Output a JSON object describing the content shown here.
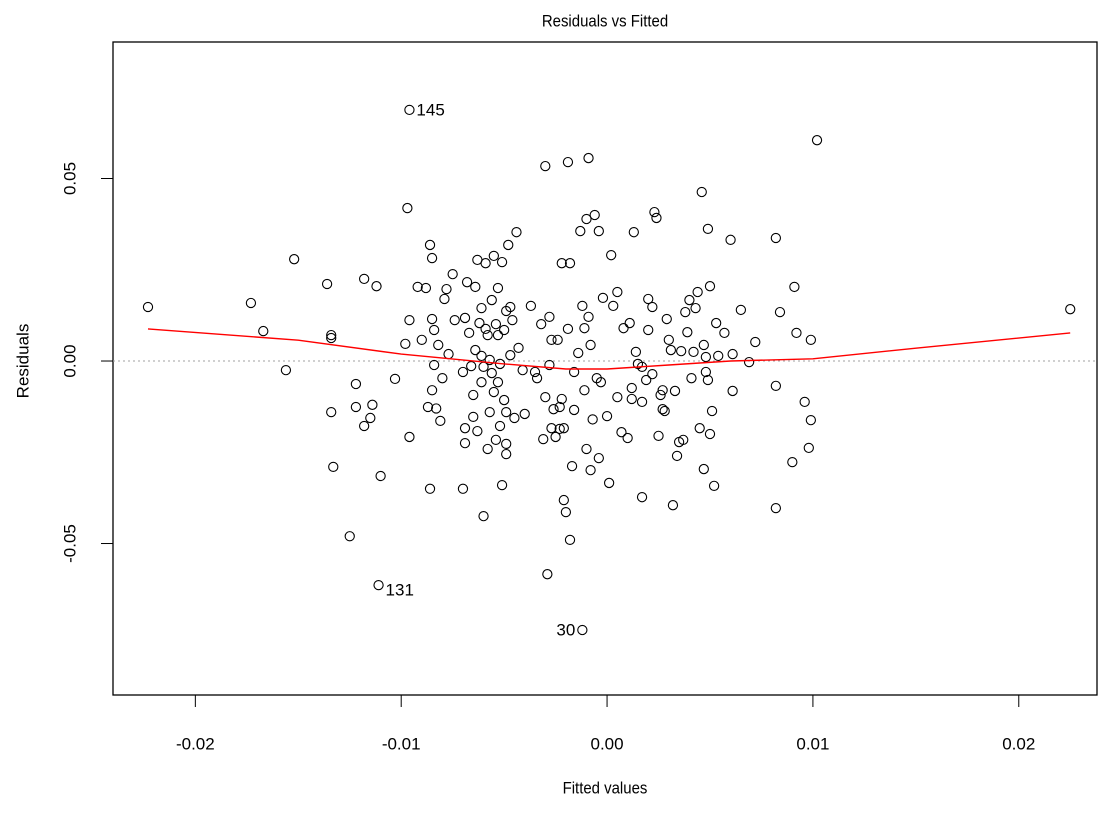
{
  "chart_data": {
    "type": "scatter",
    "title": "Residuals vs Fitted",
    "x_label": "Fitted values",
    "y_label": "Residuals",
    "xlim": [
      -0.024,
      0.0238
    ],
    "ylim": [
      -0.0915,
      0.0874
    ],
    "xticks": [
      -0.02,
      -0.01,
      {
        "value": 0,
        "label": "0.00"
      },
      0.01,
      0.02
    ],
    "yticks": [
      -0.05,
      {
        "value": 0,
        "label": "0.00"
      },
      0.05
    ],
    "color": "#000000",
    "reference_line": {
      "value": 0,
      "color": "#a0a0a0"
    },
    "smooth": {
      "color": "#ff0000",
      "x": [
        -0.0223,
        -0.015,
        -0.01,
        -0.005,
        -0.002,
        0,
        0.003,
        0.006,
        0.01,
        0.015,
        0.0225
      ],
      "values": [
        0.0088,
        0.0057,
        0.0019,
        -0.0008,
        -0.0022,
        -0.0022,
        -0.0011,
        0,
        0.0006,
        0.0035,
        0.0077
      ]
    },
    "annotations": [
      {
        "text": "145",
        "x": -0.0096,
        "y": 0.0688,
        "side": "right"
      },
      {
        "text": "131",
        "x": -0.0111,
        "y": -0.0614,
        "side": "right"
      },
      {
        "text": "30",
        "x": -0.0012,
        "y": -0.0737,
        "side": "left"
      }
    ],
    "x": [
      -0.0223,
      -0.0173,
      -0.0167,
      -0.0156,
      -0.0152,
      -0.0136,
      -0.0134,
      -0.0134,
      -0.0134,
      -0.0133,
      -0.0125,
      -0.0122,
      -0.0122,
      -0.0118,
      -0.0118,
      -0.0115,
      -0.0114,
      -0.0112,
      -0.0111,
      -0.011,
      -0.0103,
      -0.0097,
      -0.0096,
      -0.0096,
      -0.0096,
      -0.0098,
      -0.0092,
      -0.009,
      -0.0088,
      -0.0087,
      -0.0086,
      -0.0086,
      -0.0085,
      -0.0085,
      -0.0085,
      -0.0084,
      -0.0084,
      -0.0083,
      -0.0082,
      -0.0081,
      -0.008,
      -0.0078,
      -0.0079,
      -0.0077,
      -0.0075,
      -0.0074,
      -0.007,
      -0.007,
      -0.0069,
      -0.0069,
      -0.0069,
      -0.0068,
      -0.0067,
      -0.0066,
      -0.0065,
      -0.0065,
      -0.0064,
      -0.0064,
      -0.0063,
      -0.0063,
      -0.0062,
      -0.0061,
      -0.0061,
      -0.0061,
      -0.006,
      -0.006,
      -0.0059,
      -0.0059,
      -0.0058,
      -0.0058,
      -0.0057,
      -0.0057,
      -0.0056,
      -0.0056,
      -0.0055,
      -0.0055,
      -0.0054,
      -0.0054,
      -0.0053,
      -0.0053,
      -0.0053,
      -0.0052,
      -0.0052,
      -0.0051,
      -0.0051,
      -0.005,
      -0.005,
      -0.0049,
      -0.0049,
      -0.0049,
      -0.0049,
      -0.0048,
      -0.0047,
      -0.0047,
      -0.0046,
      -0.0045,
      -0.0044,
      -0.0043,
      -0.0041,
      -0.004,
      -0.0037,
      -0.0035,
      -0.0034,
      -0.0032,
      -0.0031,
      -0.003,
      -0.003,
      -0.0029,
      -0.0028,
      -0.0028,
      -0.0027,
      -0.0027,
      -0.0026,
      -0.0025,
      -0.0024,
      -0.0023,
      -0.0023,
      -0.0022,
      -0.0022,
      -0.0021,
      -0.0021,
      -0.002,
      -0.0019,
      -0.0019,
      -0.0018,
      -0.0018,
      -0.0017,
      -0.0016,
      -0.0016,
      -0.0014,
      -0.0013,
      -0.0012,
      -0.0012,
      -0.0011,
      -0.0011,
      -0.001,
      -0.001,
      -0.0009,
      -0.0009,
      -0.0008,
      -0.0008,
      -0.0007,
      -0.0006,
      -0.0005,
      -0.0004,
      -0.0004,
      -0.0003,
      -0.0002,
      0,
      0.0001,
      0.0002,
      0.0003,
      0.0005,
      0.0005,
      0.0007,
      0.0008,
      0.001,
      0.0011,
      0.0012,
      0.0012,
      0.0013,
      0.0014,
      0.0015,
      0.0017,
      0.0017,
      0.0017,
      0.0019,
      0.002,
      0.002,
      0.0022,
      0.0022,
      0.0023,
      0.0024,
      0.0025,
      0.0026,
      0.0027,
      0.0027,
      0.0028,
      0.0029,
      0.003,
      0.0031,
      0.0032,
      0.0033,
      0.0034,
      0.0035,
      0.0036,
      0.0037,
      0.0038,
      0.0039,
      0.004,
      0.0041,
      0.0042,
      0.0043,
      0.0044,
      0.0045,
      0.0046,
      0.0047,
      0.0047,
      0.0048,
      0.0048,
      0.0049,
      0.0049,
      0.005,
      0.005,
      0.0051,
      0.0052,
      0.0053,
      0.0054,
      0.0057,
      0.006,
      0.0061,
      0.0061,
      0.0065,
      0.0069,
      0.0072,
      0.0082,
      0.0082,
      0.0082,
      0.0084,
      0.009,
      0.0091,
      0.0092,
      0.0096,
      0.0098,
      0.0099,
      0.0099,
      0.0102,
      0.0225
    ],
    "values": [
      0.0148,
      0.0159,
      0.0082,
      -0.0025,
      0.0279,
      0.0211,
      0.0071,
      0.0063,
      -0.014,
      -0.029,
      -0.048,
      -0.0063,
      -0.0126,
      0.0225,
      -0.0178,
      -0.0156,
      -0.012,
      0.0205,
      -0.0614,
      -0.0315,
      -0.0049,
      0.0419,
      0.0688,
      -0.0208,
      0.0112,
      0.0047,
      0.0203,
      0.0058,
      0.02,
      -0.0126,
      -0.035,
      0.0318,
      0.0282,
      -0.008,
      0.0115,
      0.0085,
      -0.0011,
      -0.013,
      0.0044,
      -0.0164,
      -0.0047,
      0.0197,
      0.017,
      0.0019,
      0.0238,
      0.0112,
      -0.035,
      -0.003,
      -0.0225,
      -0.0184,
      0.0118,
      0.0216,
      0.0077,
      -0.0014,
      -0.0093,
      -0.0153,
      0.0203,
      0.003,
      0.0277,
      -0.0192,
      0.0104,
      0.0145,
      0.0014,
      -0.0058,
      -0.0016,
      -0.0425,
      0.0088,
      0.0268,
      -0.0241,
      0.0071,
      0.0003,
      -0.014,
      -0.0033,
      0.0167,
      0.0288,
      -0.0085,
      -0.0216,
      0.0101,
      -0.0058,
      0.0071,
      0.02,
      -0.0008,
      -0.0178,
      -0.034,
      0.0271,
      -0.0107,
      0.0085,
      -0.0227,
      0.0137,
      -0.014,
      -0.0255,
      0.0318,
      0.0016,
      0.0148,
      0.0112,
      -0.0156,
      0.0353,
      0.0036,
      -0.0025,
      -0.0145,
      0.0151,
      -0.003,
      -0.0047,
      0.0101,
      -0.0214,
      0.0534,
      -0.0099,
      -0.0584,
      0.0121,
      -0.0011,
      -0.0184,
      0.0058,
      -0.0132,
      -0.0208,
      0.0058,
      -0.0126,
      -0.0186,
      0.0268,
      -0.0104,
      -0.0381,
      -0.0184,
      -0.0414,
      0.0545,
      0.0088,
      -0.049,
      0.0268,
      -0.0288,
      -0.003,
      -0.0134,
      0.0022,
      0.0356,
      0.0151,
      -0.0737,
      0.009,
      -0.008,
      0.0389,
      -0.0241,
      0.0121,
      0.0556,
      -0.0299,
      0.0044,
      -0.016,
      0.04,
      -0.0047,
      0.0356,
      -0.0266,
      -0.0058,
      0.0173,
      -0.0151,
      -0.0334,
      0.029,
      0.0151,
      0.0189,
      -0.0099,
      -0.0195,
      0.009,
      -0.0211,
      0.0104,
      -0.0104,
      -0.0074,
      0.0353,
      0.0025,
      -0.0008,
      -0.0112,
      -0.0016,
      -0.0373,
      -0.0052,
      0.017,
      0.0085,
      -0.0036,
      0.0148,
      0.0408,
      0.0392,
      -0.0205,
      -0.0093,
      -0.0132,
      -0.008,
      -0.0137,
      0.0115,
      0.0058,
      0.003,
      -0.0395,
      -0.0082,
      -0.026,
      -0.0222,
      0.0027,
      -0.0216,
      0.0134,
      0.0079,
      0.0167,
      -0.0047,
      0.0025,
      0.0145,
      0.0189,
      -0.0184,
      0.0463,
      0.0044,
      -0.0296,
      0.0011,
      -0.003,
      -0.0052,
      0.0362,
      0.0205,
      -0.02,
      -0.0137,
      -0.0342,
      0.0104,
      0.0014,
      0.0077,
      0.0332,
      0.0019,
      -0.0082,
      0.014,
      -0.0003,
      0.0052,
      0.0337,
      -0.0068,
      -0.0403,
      0.0134,
      -0.0277,
      0.0203,
      0.0077,
      -0.0112,
      -0.0238,
      0.0058,
      -0.0162,
      0.0605,
      0.0142
    ]
  }
}
